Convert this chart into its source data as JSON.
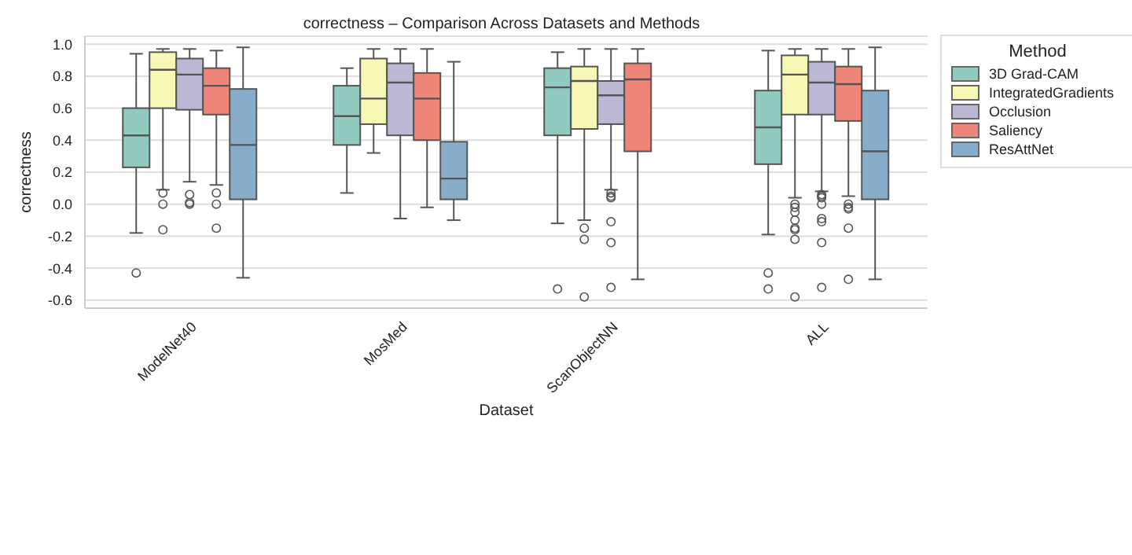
{
  "chart_data": {
    "type": "box",
    "title": "correctness – Comparison Across Datasets and Methods",
    "xlabel": "Dataset",
    "ylabel": "correctness",
    "legend_title": "Method",
    "legend": "top right",
    "grid": "y",
    "categories": [
      "ModelNet40",
      "MosMed",
      "ScanObjectNN",
      "ALL"
    ],
    "ylim": [
      -0.65,
      1.05
    ],
    "yticks": [
      -0.6,
      -0.4,
      -0.2,
      {
        "value": 0,
        "label": "0.0"
      },
      0.2,
      0.4,
      0.6,
      0.8,
      {
        "value": 1,
        "label": "1.0"
      }
    ],
    "series": [
      {
        "name": "3D Grad-CAM",
        "color": "#91cbbf",
        "boxes": [
          {
            "low": -0.18,
            "q1": 0.23,
            "median": 0.43,
            "q3": 0.6,
            "high": 0.94,
            "outliers": [
              -0.43
            ]
          },
          {
            "low": 0.07,
            "q1": 0.37,
            "median": 0.55,
            "q3": 0.74,
            "high": 0.85
          },
          {
            "low": -0.12,
            "q1": 0.43,
            "median": 0.73,
            "q3": 0.85,
            "high": 0.95,
            "outliers": [
              -0.53
            ]
          },
          {
            "low": -0.19,
            "q1": 0.25,
            "median": 0.48,
            "q3": 0.71,
            "high": 0.96,
            "outliers": [
              -0.43,
              -0.53
            ]
          }
        ]
      },
      {
        "name": "IntegratedGradients",
        "color": "#f7f7b6",
        "boxes": [
          {
            "low": 0.09,
            "q1": 0.6,
            "median": 0.84,
            "q3": 0.95,
            "high": 0.97,
            "outliers": [
              0.07,
              0.0,
              -0.16
            ]
          },
          {
            "low": 0.32,
            "q1": 0.5,
            "median": 0.66,
            "q3": 0.91,
            "high": 0.97
          },
          {
            "low": -0.1,
            "q1": 0.47,
            "median": 0.77,
            "q3": 0.86,
            "high": 0.97,
            "outliers": [
              -0.15,
              -0.22,
              -0.58
            ]
          },
          {
            "low": 0.04,
            "q1": 0.56,
            "median": 0.81,
            "q3": 0.93,
            "high": 0.97,
            "outliers": [
              0.0,
              -0.02,
              -0.05,
              -0.1,
              -0.15,
              -0.16,
              -0.22,
              -0.58
            ]
          }
        ]
      },
      {
        "name": "Occlusion",
        "color": "#bcb8d4",
        "boxes": [
          {
            "low": 0.14,
            "q1": 0.59,
            "median": 0.81,
            "q3": 0.91,
            "high": 0.97,
            "outliers": [
              0.06,
              0.01,
              0.0
            ]
          },
          {
            "low": -0.09,
            "q1": 0.43,
            "median": 0.76,
            "q3": 0.88,
            "high": 0.97
          },
          {
            "low": 0.09,
            "q1": 0.5,
            "median": 0.68,
            "q3": 0.77,
            "high": 0.97,
            "outliers": [
              0.07,
              0.05,
              0.04,
              -0.11,
              -0.24,
              -0.52
            ]
          },
          {
            "low": 0.08,
            "q1": 0.56,
            "median": 0.76,
            "q3": 0.89,
            "high": 0.97,
            "outliers": [
              0.06,
              0.05,
              0.04,
              0.0,
              -0.09,
              -0.11,
              -0.24,
              -0.52
            ]
          }
        ]
      },
      {
        "name": "Saliency",
        "color": "#ed8679",
        "boxes": [
          {
            "low": 0.12,
            "q1": 0.56,
            "median": 0.74,
            "q3": 0.85,
            "high": 0.96,
            "outliers": [
              0.07,
              0.0,
              -0.15
            ]
          },
          {
            "low": -0.02,
            "q1": 0.4,
            "median": 0.66,
            "q3": 0.82,
            "high": 0.97
          },
          {
            "low": -0.47,
            "q1": 0.33,
            "median": 0.78,
            "q3": 0.88,
            "high": 0.97
          },
          {
            "low": 0.05,
            "q1": 0.52,
            "median": 0.75,
            "q3": 0.86,
            "high": 0.97,
            "outliers": [
              0.0,
              -0.02,
              -0.03,
              -0.15,
              -0.47
            ]
          }
        ]
      },
      {
        "name": "ResAttNet",
        "color": "#88adc9",
        "boxes": [
          {
            "low": -0.46,
            "q1": 0.03,
            "median": 0.37,
            "q3": 0.72,
            "high": 0.98
          },
          {
            "low": -0.1,
            "q1": 0.03,
            "median": 0.16,
            "q3": 0.39,
            "high": 0.89
          },
          null,
          {
            "low": -0.47,
            "q1": 0.03,
            "median": 0.33,
            "q3": 0.71,
            "high": 0.98
          }
        ]
      }
    ]
  }
}
